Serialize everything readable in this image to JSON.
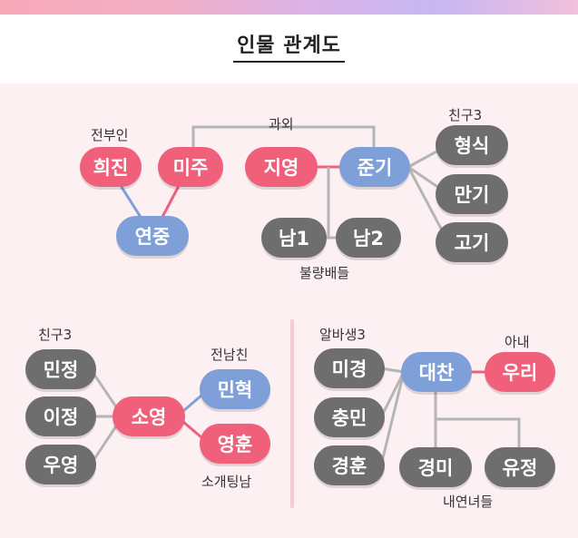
{
  "title": "인물 관계도",
  "colors": {
    "pink": "#f0607a",
    "blue": "#7f9fd8",
    "gray": "#6e6e6e",
    "pink_line": "#f0607a",
    "blue_line": "#7f9fd8",
    "gray_line": "#b5b5b5"
  },
  "group1": {
    "label_ex_wife": "전부인",
    "label_tutoring": "과외",
    "label_friend": "친구3",
    "label_bullies": "불량배들",
    "nodes": {
      "huijin": "희진",
      "miju": "미주",
      "yeonjung": "연중",
      "jiyoung": "지영",
      "jungi": "준기",
      "hyungsik": "형식",
      "mangi": "만기",
      "gogi": "고기",
      "nam1": "남1",
      "nam2": "남2"
    }
  },
  "group2": {
    "label_friend": "친구3",
    "label_ex_boyfriend": "전남친",
    "label_blind_date": "소개팅남",
    "nodes": {
      "minjeong": "민정",
      "ijeong": "이정",
      "uyoung": "우영",
      "soyoung": "소영",
      "minhyuk": "민혁",
      "younghun": "영훈"
    }
  },
  "group3": {
    "label_part_timer": "알바생3",
    "label_wife": "아내",
    "label_younger_women": "내연녀들",
    "nodes": {
      "migyeong": "미경",
      "chungmin": "충민",
      "gyeonghun": "경훈",
      "daechan": "대찬",
      "uri": "우리",
      "gyeongmi": "경미",
      "yujeong": "유정"
    }
  }
}
